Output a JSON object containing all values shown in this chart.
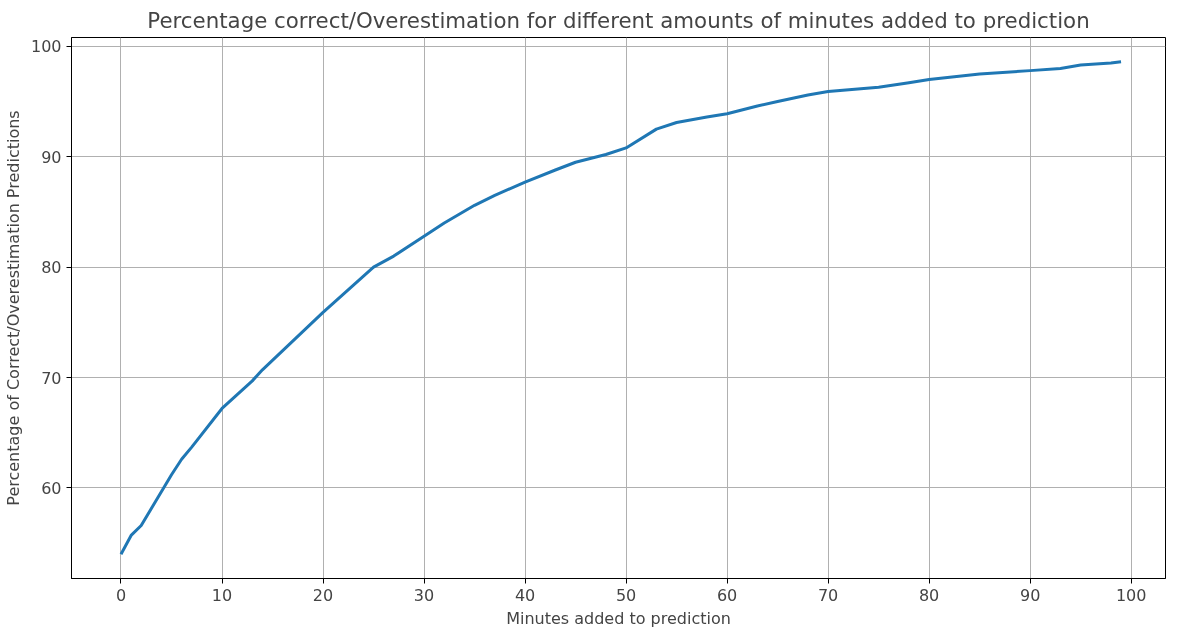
{
  "chart_data": {
    "type": "line",
    "title": "Percentage correct/Overestimation for different amounts of minutes added to prediction",
    "xlabel": "Minutes added to prediction",
    "ylabel": "Percentage of Correct/Overestimation Predictions",
    "x": [
      0,
      1,
      2,
      5,
      6,
      7,
      10,
      13,
      14,
      17,
      20,
      25,
      27,
      30,
      32,
      35,
      37,
      40,
      43,
      45,
      48,
      50,
      53,
      55,
      58,
      60,
      63,
      65,
      68,
      70,
      75,
      78,
      80,
      85,
      90,
      93,
      95,
      98,
      99
    ],
    "series": [
      {
        "color": "#1f77b4",
        "values": [
          54.0,
          55.7,
          56.6,
          61.2,
          62.6,
          63.7,
          67.2,
          69.7,
          70.7,
          73.3,
          75.9,
          80.0,
          81.0,
          82.8,
          84.0,
          85.6,
          86.5,
          87.7,
          88.8,
          89.5,
          90.2,
          90.8,
          92.5,
          93.1,
          93.6,
          93.9,
          94.6,
          95.0,
          95.6,
          95.9,
          96.3,
          96.7,
          97.0,
          97.5,
          97.8,
          98.0,
          98.3,
          98.5,
          98.6
        ]
      }
    ],
    "xlim": [
      -4.9,
      103.4
    ],
    "ylim": [
      51.8,
      100.8
    ],
    "xticks": [
      0,
      10,
      20,
      30,
      40,
      50,
      60,
      70,
      80,
      90,
      100
    ],
    "yticks": [
      60,
      70,
      80,
      90,
      100
    ],
    "grid": true,
    "line_style": "solid"
  }
}
